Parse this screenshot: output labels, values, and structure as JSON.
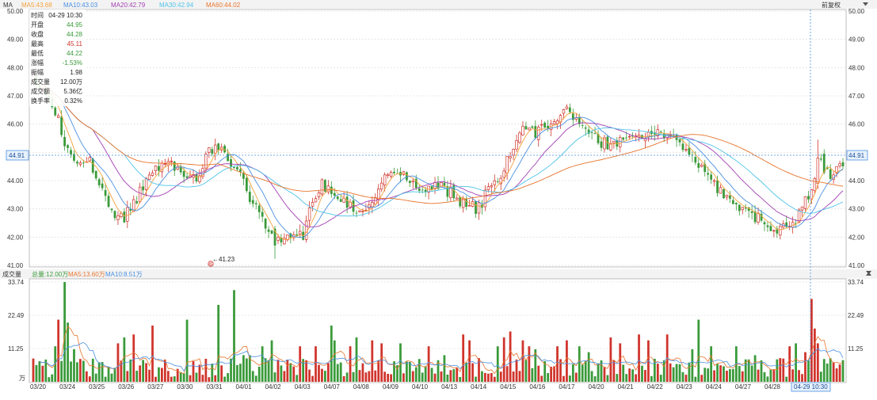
{
  "header": {
    "indicator_label": "MA",
    "ma5_label": "MA5:43.68",
    "ma10_label": "MA10:43.03",
    "ma20_label": "MA20:42.79",
    "ma30_label": "MA30:42.94",
    "ma60_label": "MA60:44.02",
    "adjust_button": "前复权"
  },
  "colors": {
    "up": "#d0342c",
    "down": "#3a9a3a",
    "ma5": "#f4a23c",
    "ma10": "#4a90e2",
    "ma20": "#a33fb4",
    "ma30": "#4fc3e8",
    "ma60": "#e8742c",
    "grid": "#d8d8d8",
    "crosshair": "#4a90e2"
  },
  "info_panel": {
    "rows": [
      {
        "label": "时间",
        "value": "04-29 10:30",
        "color": "#222222"
      },
      {
        "label": "开盘",
        "value": "44.95",
        "color": "#3a9a3a"
      },
      {
        "label": "收盘",
        "value": "44.28",
        "color": "#3a9a3a"
      },
      {
        "label": "最高",
        "value": "45.11",
        "color": "#d0342c"
      },
      {
        "label": "最低",
        "value": "44.22",
        "color": "#3a9a3a"
      },
      {
        "label": "涨幅",
        "value": "-1.53%",
        "color": "#3a9a3a"
      },
      {
        "label": "振幅",
        "value": "1.98",
        "color": "#222222"
      },
      {
        "label": "成交量",
        "value": "12.00万",
        "color": "#222222"
      },
      {
        "label": "成交额",
        "value": "5.36亿",
        "color": "#222222"
      },
      {
        "label": "换手率",
        "value": "0.32%",
        "color": "#222222"
      }
    ]
  },
  "price_axis": {
    "ticks": [
      "50.00",
      "49.00",
      "48.00",
      "47.00",
      "46.00",
      "44.00",
      "43.00",
      "42.00",
      "41.00"
    ],
    "crosshair_value": "44.91",
    "min_marker": "←41.23",
    "min_marker_badge": "低"
  },
  "volume_header": {
    "title": "成交量",
    "total": "总量:12.00万",
    "ma5": "MA5:13.60万",
    "ma10": "MA10:8.51万"
  },
  "volume_axis": {
    "ticks": [
      "33.74",
      "22.49",
      "11.25"
    ],
    "unit": "万"
  },
  "x_axis": {
    "dates": [
      "03/20",
      "03/24",
      "03/25",
      "03/26",
      "03/27",
      "03/30",
      "03/31",
      "04/01",
      "04/02",
      "04/03",
      "04/07",
      "04/08",
      "04/09",
      "04/10",
      "04/13",
      "04/14",
      "04/15",
      "04/16",
      "04/17",
      "04/20",
      "04/21",
      "04/22",
      "04/23",
      "04/24",
      "04/27",
      "04/28"
    ],
    "crosshair_label": "04-29 10:30"
  },
  "chart_data": {
    "type": "candlestick",
    "price_range": [
      41.0,
      50.0
    ],
    "volume_range": [
      0,
      33.74
    ],
    "price_waypoints": [
      [
        0,
        47.6
      ],
      [
        6,
        46.8
      ],
      [
        10,
        45.4
      ],
      [
        14,
        44.6
      ],
      [
        18,
        44.7
      ],
      [
        26,
        42.6
      ],
      [
        29,
        42.7
      ],
      [
        34,
        43.6
      ],
      [
        37,
        44.4
      ],
      [
        42,
        44.6
      ],
      [
        47,
        44.3
      ],
      [
        52,
        44.0
      ],
      [
        56,
        45.1
      ],
      [
        60,
        45.0
      ],
      [
        64,
        44.6
      ],
      [
        68,
        43.6
      ],
      [
        72,
        42.9
      ],
      [
        77,
        41.8
      ],
      [
        82,
        41.9
      ],
      [
        86,
        42.1
      ],
      [
        89,
        43.3
      ],
      [
        92,
        43.9
      ],
      [
        95,
        43.7
      ],
      [
        99,
        43.3
      ],
      [
        105,
        42.9
      ],
      [
        109,
        43.5
      ],
      [
        113,
        44.3
      ],
      [
        118,
        44.2
      ],
      [
        123,
        43.7
      ],
      [
        128,
        43.8
      ],
      [
        133,
        43.6
      ],
      [
        137,
        43.2
      ],
      [
        142,
        43.0
      ],
      [
        145,
        43.7
      ],
      [
        148,
        44.0
      ],
      [
        152,
        45.0
      ],
      [
        156,
        45.8
      ],
      [
        161,
        45.7
      ],
      [
        166,
        46.0
      ],
      [
        170,
        46.4
      ],
      [
        174,
        46.0
      ],
      [
        178,
        45.5
      ],
      [
        182,
        45.3
      ],
      [
        186,
        45.4
      ],
      [
        190,
        45.5
      ],
      [
        195,
        45.6
      ],
      [
        200,
        45.6
      ],
      [
        205,
        45.5
      ],
      [
        209,
        45.0
      ],
      [
        213,
        44.4
      ],
      [
        217,
        43.8
      ],
      [
        221,
        43.4
      ],
      [
        226,
        43.0
      ],
      [
        230,
        42.7
      ],
      [
        234,
        42.4
      ],
      [
        238,
        42.3
      ],
      [
        242,
        42.35
      ],
      [
        245,
        43.0
      ],
      [
        248,
        43.7
      ],
      [
        250,
        44.8
      ],
      [
        253,
        44.2
      ],
      [
        256,
        44.4
      ],
      [
        258,
        44.6
      ]
    ],
    "volume_spikes": [
      [
        7,
        12
      ],
      [
        8,
        21
      ],
      [
        10,
        33.74
      ],
      [
        11,
        20
      ],
      [
        13,
        11
      ],
      [
        27,
        13
      ],
      [
        29,
        15
      ],
      [
        32,
        16
      ],
      [
        38,
        19
      ],
      [
        49,
        21
      ],
      [
        59,
        26
      ],
      [
        64,
        31
      ],
      [
        67,
        9
      ],
      [
        69,
        9
      ],
      [
        73,
        12
      ],
      [
        76,
        14
      ],
      [
        85,
        12
      ],
      [
        90,
        12
      ],
      [
        95,
        19
      ],
      [
        96,
        14
      ],
      [
        101,
        12
      ],
      [
        103,
        15
      ],
      [
        108,
        14
      ],
      [
        111,
        13
      ],
      [
        117,
        13
      ],
      [
        126,
        12
      ],
      [
        131,
        9
      ],
      [
        137,
        16
      ],
      [
        139,
        14
      ],
      [
        142,
        8
      ],
      [
        148,
        12
      ],
      [
        150,
        15
      ],
      [
        152,
        17
      ],
      [
        156,
        14
      ],
      [
        158,
        12
      ],
      [
        160,
        11
      ],
      [
        167,
        12
      ],
      [
        170,
        14
      ],
      [
        174,
        12
      ],
      [
        177,
        10
      ],
      [
        184,
        15
      ],
      [
        187,
        13
      ],
      [
        193,
        16
      ],
      [
        196,
        14
      ],
      [
        202,
        16
      ],
      [
        210,
        11
      ],
      [
        212,
        21
      ],
      [
        216,
        12
      ],
      [
        224,
        12
      ],
      [
        230,
        9
      ],
      [
        238,
        8
      ],
      [
        241,
        12
      ],
      [
        243,
        13
      ],
      [
        246,
        10
      ],
      [
        248,
        28
      ],
      [
        249,
        18
      ],
      [
        250,
        13
      ]
    ]
  }
}
